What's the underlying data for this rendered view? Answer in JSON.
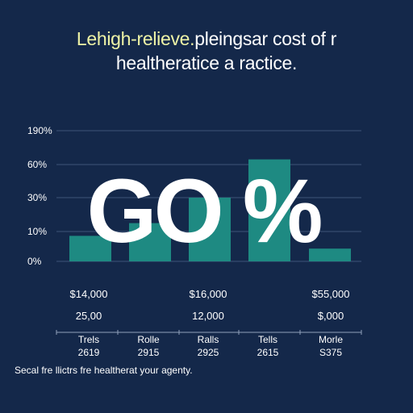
{
  "title": {
    "highlight": "Lehigh-relieve.",
    "rest_line1": "pleingsar cost of r",
    "line2": "healtheratice a racticе."
  },
  "chart_data": {
    "type": "bar",
    "ytick_labels": [
      "190%",
      "60%",
      "30%",
      "10%",
      "0%"
    ],
    "categories": [
      "Trels",
      "Rolle",
      "Ralls",
      "Tells",
      "Morle"
    ],
    "category_years": [
      "2619",
      "2915",
      "2925",
      "2615",
      "S375"
    ],
    "values": [
      4,
      6,
      10,
      16,
      2
    ],
    "bar_colors": [
      "#1e8a82",
      "#1e8a82",
      "#1e8a82",
      "#1e8a82",
      "#1e8a82"
    ],
    "ylim": [
      0,
      30
    ],
    "grid": true,
    "overlay_text": "GO %",
    "row1": [
      "$14,000",
      "",
      "$16,000",
      "",
      "$55,000"
    ],
    "row2": [
      "25,00",
      "",
      "12,000",
      "",
      "$,000"
    ]
  },
  "footer": "Secal fre llictrs fre healtherat your agenty."
}
